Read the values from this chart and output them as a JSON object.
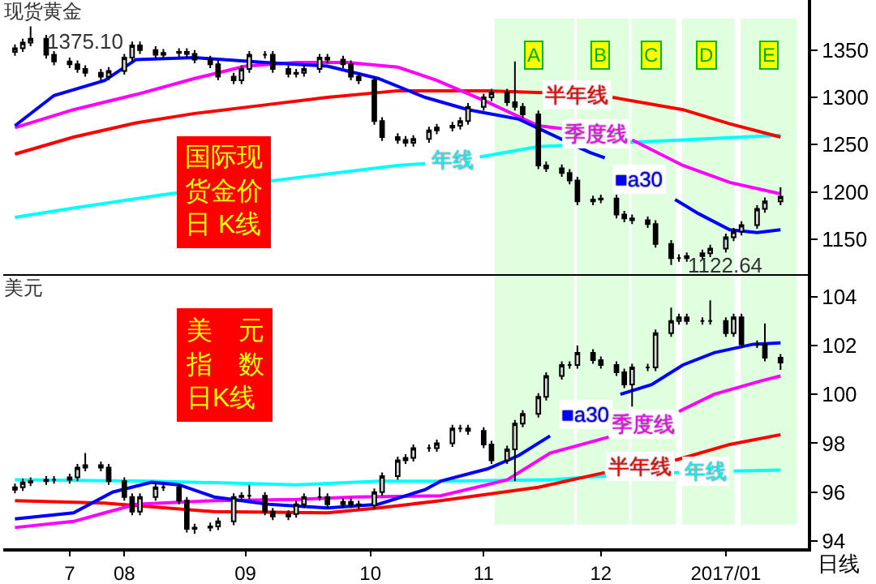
{
  "chart_data": [
    {
      "type": "candlestick",
      "title": "现货黄金",
      "tick_labels": "y",
      "legend": false,
      "xlim": [
        "2016-07-01",
        "2017-01-23"
      ],
      "ylim": [
        1113,
        1403
      ],
      "yticks": [
        1150,
        1200,
        1250,
        1300,
        1350
      ],
      "x": [
        "2016-07-04",
        "2016-07-06",
        "2016-07-08",
        "2016-07-12",
        "2016-07-14",
        "2016-07-18",
        "2016-07-20",
        "2016-07-22",
        "2016-07-26",
        "2016-07-28",
        "2016-08-01",
        "2016-08-03",
        "2016-08-05",
        "2016-08-09",
        "2016-08-11",
        "2016-08-15",
        "2016-08-17",
        "2016-08-19",
        "2016-08-23",
        "2016-08-25",
        "2016-08-29",
        "2016-08-31",
        "2016-09-02",
        "2016-09-06",
        "2016-09-08",
        "2016-09-12",
        "2016-09-14",
        "2016-09-16",
        "2016-09-20",
        "2016-09-22",
        "2016-09-26",
        "2016-09-28",
        "2016-09-30",
        "2016-10-04",
        "2016-10-06",
        "2016-10-10",
        "2016-10-12",
        "2016-10-14",
        "2016-10-18",
        "2016-10-20",
        "2016-10-24",
        "2016-10-26",
        "2016-10-28",
        "2016-11-01",
        "2016-11-03",
        "2016-11-07",
        "2016-11-09",
        "2016-11-11",
        "2016-11-15",
        "2016-11-17",
        "2016-11-21",
        "2016-11-23",
        "2016-11-25",
        "2016-11-29",
        "2016-12-01",
        "2016-12-05",
        "2016-12-07",
        "2016-12-09",
        "2016-12-13",
        "2016-12-15",
        "2016-12-19",
        "2016-12-21",
        "2016-12-23",
        "2016-12-27",
        "2016-12-29",
        "2017-01-02",
        "2017-01-04",
        "2017-01-06",
        "2017-01-10",
        "2017-01-12",
        "2017-01-16"
      ],
      "ohlc": [
        [
          1348,
          1356,
          1344,
          1352
        ],
        [
          1352,
          1362,
          1348,
          1358
        ],
        [
          1358,
          1375.1,
          1354,
          1362
        ],
        [
          1362,
          1366,
          1341,
          1345
        ],
        [
          1345,
          1349,
          1334,
          1338
        ],
        [
          1338,
          1342,
          1331,
          1335
        ],
        [
          1335,
          1339,
          1326,
          1330
        ],
        [
          1330,
          1334,
          1322,
          1326
        ],
        [
          1326,
          1330,
          1318,
          1322
        ],
        [
          1322,
          1332,
          1318,
          1328
        ],
        [
          1328,
          1346,
          1324,
          1342
        ],
        [
          1342,
          1359,
          1338,
          1355
        ],
        [
          1355,
          1359,
          1346,
          1350
        ],
        [
          1350,
          1354,
          1341,
          1345
        ],
        [
          1345,
          1351,
          1341,
          1347
        ],
        [
          1347,
          1352,
          1343,
          1348
        ],
        [
          1348,
          1352,
          1342,
          1346
        ],
        [
          1346,
          1350,
          1336,
          1340
        ],
        [
          1340,
          1344,
          1331,
          1335
        ],
        [
          1335,
          1339,
          1318,
          1322
        ],
        [
          1322,
          1326,
          1314,
          1318
        ],
        [
          1318,
          1334,
          1314,
          1330
        ],
        [
          1330,
          1349,
          1326,
          1345
        ],
        [
          1345,
          1349,
          1341,
          1345
        ],
        [
          1345,
          1349,
          1326,
          1330
        ],
        [
          1330,
          1334,
          1321,
          1325
        ],
        [
          1325,
          1330,
          1321,
          1326
        ],
        [
          1326,
          1334,
          1322,
          1330
        ],
        [
          1330,
          1346,
          1326,
          1342
        ],
        [
          1342,
          1346,
          1336,
          1340
        ],
        [
          1340,
          1344,
          1331,
          1335
        ],
        [
          1335,
          1339,
          1318,
          1322
        ],
        [
          1322,
          1326,
          1314,
          1318
        ],
        [
          1318,
          1322,
          1271,
          1275
        ],
        [
          1275,
          1279,
          1254,
          1258
        ],
        [
          1258,
          1262,
          1251,
          1255
        ],
        [
          1255,
          1259,
          1248,
          1252
        ],
        [
          1252,
          1260,
          1248,
          1256
        ],
        [
          1256,
          1269,
          1252,
          1265
        ],
        [
          1265,
          1272,
          1261,
          1268
        ],
        [
          1268,
          1274,
          1264,
          1270
        ],
        [
          1270,
          1279,
          1266,
          1275
        ],
        [
          1275,
          1294,
          1271,
          1290
        ],
        [
          1290,
          1304,
          1286,
          1300
        ],
        [
          1300,
          1309,
          1296,
          1305
        ],
        [
          1305,
          1309,
          1291,
          1295
        ],
        [
          1295,
          1338,
          1286,
          1290
        ],
        [
          1290,
          1294,
          1278,
          1282
        ],
        [
          1282,
          1286,
          1224,
          1228
        ],
        [
          1228,
          1232,
          1221,
          1225
        ],
        [
          1225,
          1229,
          1216,
          1220
        ],
        [
          1220,
          1224,
          1208,
          1212
        ],
        [
          1212,
          1216,
          1186,
          1190
        ],
        [
          1190,
          1196,
          1186,
          1192
        ],
        [
          1192,
          1197,
          1188,
          1193
        ],
        [
          1193,
          1197,
          1172,
          1176
        ],
        [
          1176,
          1180,
          1168,
          1172
        ],
        [
          1172,
          1176,
          1166,
          1170
        ],
        [
          1170,
          1174,
          1162,
          1166
        ],
        [
          1166,
          1170,
          1141,
          1145
        ],
        [
          1145,
          1149,
          1122.64,
          1130
        ],
        [
          1130,
          1134,
          1126,
          1130
        ],
        [
          1130,
          1136,
          1126,
          1132
        ],
        [
          1132,
          1139,
          1128,
          1135
        ],
        [
          1135,
          1144,
          1131,
          1140
        ],
        [
          1140,
          1156,
          1136,
          1152
        ],
        [
          1152,
          1162,
          1148,
          1158
        ],
        [
          1158,
          1169,
          1154,
          1165
        ],
        [
          1165,
          1186,
          1161,
          1182
        ],
        [
          1182,
          1194,
          1178,
          1190
        ],
        [
          1190,
          1205,
          1186,
          1195
        ]
      ],
      "series": [
        {
          "type": "line",
          "name": "年线",
          "color": "#00ffff",
          "x": [
            "2016-07-04",
            "2016-07-19",
            "2016-08-11",
            "2016-09-14",
            "2016-10-10",
            "2016-10-17",
            "2016-10-24",
            "2016-10-31",
            "2016-11-15",
            "2016-12-12",
            "2016-12-22",
            "2017-01-16"
          ],
          "values": [
            1173,
            1183,
            1197,
            1215,
            1228,
            1230,
            null,
            1237,
            1248,
            1253,
            1255,
            1260
          ]
        },
        {
          "type": "line",
          "name": "半年线",
          "color": "#ff0000",
          "x": [
            "2016-07-04",
            "2016-07-19",
            "2016-08-04",
            "2016-08-19",
            "2016-09-06",
            "2016-09-22",
            "2016-10-10",
            "2016-11-02",
            "2016-11-16",
            "2016-11-25",
            "2016-12-04",
            "2016-12-22",
            "2017-01-03",
            "2017-01-16"
          ],
          "values": [
            1240,
            1258,
            1273,
            1283,
            1292,
            1300,
            1307,
            1307,
            1305,
            null,
            1300,
            1287,
            1272,
            1258
          ]
        },
        {
          "type": "line",
          "name": "季度线",
          "color": "#ff00ff",
          "x": [
            "2016-07-04",
            "2016-07-19",
            "2016-08-04",
            "2016-08-19",
            "2016-09-01",
            "2016-09-14",
            "2016-09-27",
            "2016-10-10",
            "2016-10-20",
            "2016-11-02",
            "2016-11-15",
            "2016-11-21",
            "2016-11-30",
            "2016-12-09",
            "2016-12-22",
            "2017-01-03",
            "2017-01-16"
          ],
          "values": [
            1268,
            1287,
            1303,
            1320,
            1333,
            1337,
            1337,
            1332,
            1318,
            1295,
            1270,
            1267,
            null,
            1255,
            1228,
            1210,
            1198
          ]
        },
        {
          "type": "line",
          "name": "■a30",
          "color": "#0000ff",
          "x": [
            "2016-07-04",
            "2016-07-14",
            "2016-07-27",
            "2016-08-04",
            "2016-08-19",
            "2016-09-06",
            "2016-09-22",
            "2016-10-05",
            "2016-10-17",
            "2016-10-28",
            "2016-11-10",
            "2016-11-28",
            "2016-12-02",
            "2016-12-11",
            "2016-12-20",
            "2016-12-26",
            "2017-01-03",
            "2017-01-10",
            "2017-01-16"
          ],
          "values": [
            1270,
            1302,
            1318,
            1340,
            1342,
            1337,
            1333,
            1320,
            1300,
            1287,
            1277,
            1242,
            1236,
            null,
            1192,
            1177,
            1160,
            1157,
            1160
          ]
        }
      ],
      "bands": [
        {
          "axis": "x",
          "from": "2016-11-04",
          "to": "2016-11-24",
          "label": "A",
          "color": "#00ff00"
        },
        {
          "axis": "x",
          "from": "2016-11-25",
          "to": "2016-12-08",
          "label": "B",
          "color": "#00ff00"
        },
        {
          "axis": "x",
          "from": "2016-12-09",
          "to": "2016-12-20",
          "label": "C",
          "color": "#00ff00"
        },
        {
          "axis": "x",
          "from": "2016-12-22",
          "to": "2017-01-04",
          "label": "D",
          "color": "#00ff00"
        },
        {
          "axis": "x",
          "from": "2017-01-06",
          "to": "2017-01-20",
          "label": "E",
          "color": "#00ff00"
        }
      ],
      "annotations": [
        "国际现货金价日 K线",
        {
          "text": "1375.10",
          "x": "2016-07-08",
          "y": 1375.1
        },
        {
          "text": "1122.64",
          "x": "2016-12-19",
          "y": 1122.64
        }
      ]
    },
    {
      "type": "candlestick",
      "title": "美元",
      "xlabel": "日线",
      "legend": false,
      "xlim": [
        "2016-07-01",
        "2017-01-23"
      ],
      "xticks": [
        {
          "value": "2016-07-18",
          "label": "7"
        },
        {
          "value": "2016-08-01",
          "label": "08"
        },
        {
          "value": "2016-09-01",
          "label": "09"
        },
        {
          "value": "2016-10-03",
          "label": "10"
        },
        {
          "value": "2016-11-01",
          "label": "11"
        },
        {
          "value": "2016-12-01",
          "label": "12"
        },
        {
          "value": "2017-01-02",
          "label": "2017/01"
        }
      ],
      "ylim": [
        93.7,
        104.85
      ],
      "yticks": [
        94,
        96,
        98,
        100,
        102,
        104
      ],
      "x": [
        "2016-07-04",
        "2016-07-06",
        "2016-07-08",
        "2016-07-12",
        "2016-07-14",
        "2016-07-18",
        "2016-07-20",
        "2016-07-22",
        "2016-07-26",
        "2016-07-28",
        "2016-08-01",
        "2016-08-03",
        "2016-08-05",
        "2016-08-09",
        "2016-08-11",
        "2016-08-15",
        "2016-08-17",
        "2016-08-19",
        "2016-08-23",
        "2016-08-25",
        "2016-08-29",
        "2016-08-31",
        "2016-09-02",
        "2016-09-06",
        "2016-09-08",
        "2016-09-12",
        "2016-09-14",
        "2016-09-16",
        "2016-09-20",
        "2016-09-22",
        "2016-09-26",
        "2016-09-28",
        "2016-09-30",
        "2016-10-04",
        "2016-10-06",
        "2016-10-10",
        "2016-10-12",
        "2016-10-14",
        "2016-10-18",
        "2016-10-20",
        "2016-10-24",
        "2016-10-26",
        "2016-10-28",
        "2016-11-01",
        "2016-11-03",
        "2016-11-07",
        "2016-11-09",
        "2016-11-11",
        "2016-11-15",
        "2016-11-17",
        "2016-11-21",
        "2016-11-23",
        "2016-11-25",
        "2016-11-29",
        "2016-12-01",
        "2016-12-05",
        "2016-12-07",
        "2016-12-09",
        "2016-12-13",
        "2016-12-15",
        "2016-12-19",
        "2016-12-21",
        "2016-12-23",
        "2016-12-27",
        "2016-12-29",
        "2017-01-02",
        "2017-01-04",
        "2017-01-06",
        "2017-01-10",
        "2017-01-12",
        "2017-01-16"
      ],
      "ohlc": [
        [
          96.1,
          96.35,
          95.95,
          96.2
        ],
        [
          96.2,
          96.55,
          96.05,
          96.4
        ],
        [
          96.4,
          96.6,
          96.25,
          96.45
        ],
        [
          96.45,
          96.65,
          96.3,
          96.5
        ],
        [
          96.5,
          96.65,
          96.35,
          96.5
        ],
        [
          96.5,
          96.75,
          96.35,
          96.6
        ],
        [
          96.6,
          97.15,
          96.45,
          97.0
        ],
        [
          97.0,
          97.6,
          96.85,
          97.1
        ],
        [
          97.1,
          97.25,
          96.85,
          97.0
        ],
        [
          97.0,
          97.15,
          96.3,
          96.45
        ],
        [
          96.45,
          96.6,
          95.65,
          95.8
        ],
        [
          95.8,
          95.95,
          95.05,
          95.2
        ],
        [
          95.2,
          95.95,
          95.05,
          95.8
        ],
        [
          95.8,
          96.35,
          95.65,
          96.2
        ],
        [
          96.2,
          96.35,
          96.05,
          96.2
        ],
        [
          96.2,
          96.35,
          95.5,
          95.65
        ],
        [
          95.65,
          95.8,
          94.35,
          94.5
        ],
        [
          94.5,
          94.7,
          94.3,
          94.55
        ],
        [
          94.55,
          94.75,
          94.4,
          94.6
        ],
        [
          94.6,
          94.95,
          94.45,
          94.8
        ],
        [
          94.8,
          95.95,
          94.65,
          95.8
        ],
        [
          95.8,
          96.0,
          95.65,
          95.85
        ],
        [
          95.85,
          96.3,
          95.7,
          95.85
        ],
        [
          95.85,
          96.0,
          95.05,
          95.2
        ],
        [
          95.2,
          95.35,
          94.85,
          95.0
        ],
        [
          95.0,
          95.25,
          94.85,
          95.1
        ],
        [
          95.1,
          95.65,
          94.95,
          95.5
        ],
        [
          95.5,
          95.95,
          95.35,
          95.8
        ],
        [
          95.8,
          96.2,
          95.65,
          95.8
        ],
        [
          95.8,
          95.95,
          95.35,
          95.5
        ],
        [
          95.5,
          95.75,
          95.35,
          95.6
        ],
        [
          95.6,
          95.75,
          95.35,
          95.5
        ],
        [
          95.5,
          95.65,
          95.3,
          95.45
        ],
        [
          95.45,
          96.15,
          95.3,
          96.0
        ],
        [
          96.0,
          96.8,
          95.85,
          96.65
        ],
        [
          96.65,
          97.45,
          96.5,
          97.3
        ],
        [
          97.3,
          97.55,
          97.15,
          97.4
        ],
        [
          97.4,
          97.95,
          97.25,
          97.8
        ],
        [
          97.8,
          97.95,
          97.65,
          97.8
        ],
        [
          97.8,
          98.15,
          97.65,
          98.0
        ],
        [
          98.0,
          98.75,
          97.85,
          98.6
        ],
        [
          98.6,
          98.75,
          98.45,
          98.6
        ],
        [
          98.6,
          98.75,
          98.35,
          98.5
        ],
        [
          98.5,
          98.65,
          97.8,
          97.95
        ],
        [
          97.95,
          98.1,
          97.15,
          97.3
        ],
        [
          97.3,
          97.9,
          97.15,
          97.75
        ],
        [
          97.75,
          98.95,
          96.45,
          98.8
        ],
        [
          98.8,
          99.35,
          98.65,
          99.2
        ],
        [
          99.2,
          100.05,
          99.05,
          99.9
        ],
        [
          99.9,
          100.9,
          99.75,
          100.75
        ],
        [
          100.75,
          101.35,
          100.6,
          101.2
        ],
        [
          101.2,
          101.35,
          101.05,
          101.2
        ],
        [
          101.2,
          102.0,
          101.05,
          101.7
        ],
        [
          101.7,
          101.85,
          101.25,
          101.4
        ],
        [
          101.4,
          101.55,
          101.05,
          101.2
        ],
        [
          101.2,
          101.35,
          100.75,
          100.9
        ],
        [
          100.9,
          101.05,
          100.25,
          100.4
        ],
        [
          100.4,
          101.25,
          99.5,
          101.1
        ],
        [
          101.1,
          101.25,
          100.95,
          101.1
        ],
        [
          101.1,
          102.65,
          100.95,
          102.5
        ],
        [
          102.5,
          103.55,
          102.35,
          103.0
        ],
        [
          103.0,
          103.3,
          102.85,
          103.15
        ],
        [
          103.15,
          103.3,
          102.85,
          103.0
        ],
        [
          103.0,
          103.15,
          102.85,
          103.0
        ],
        [
          103.0,
          103.85,
          102.85,
          103.0
        ],
        [
          103.0,
          103.15,
          102.35,
          102.5
        ],
        [
          102.5,
          103.3,
          102.35,
          103.15
        ],
        [
          103.15,
          103.3,
          101.9,
          102.05
        ],
        [
          102.05,
          102.2,
          101.9,
          102.05
        ],
        [
          102.05,
          102.9,
          101.35,
          101.5
        ],
        [
          101.5,
          101.65,
          101.0,
          101.3
        ]
      ],
      "series": [
        {
          "type": "line",
          "name": "年线",
          "color": "#00ffff",
          "x": [
            "2016-07-04",
            "2016-08-08",
            "2016-09-14",
            "2016-10-05",
            "2016-10-21",
            "2016-11-18",
            "2016-11-28",
            "2016-12-21",
            "2016-12-28",
            "2017-01-04",
            "2017-01-16"
          ],
          "values": [
            96.5,
            96.45,
            96.3,
            96.45,
            96.45,
            96.5,
            96.62,
            96.8,
            null,
            96.86,
            96.9
          ]
        },
        {
          "type": "line",
          "name": "半年线",
          "color": "#ff0000",
          "x": [
            "2016-07-04",
            "2016-07-27",
            "2016-08-24",
            "2016-09-22",
            "2016-10-05",
            "2016-10-21",
            "2016-11-15",
            "2016-12-02",
            "2016-12-11",
            "2016-12-20",
            "2017-01-03",
            "2017-01-16"
          ],
          "values": [
            95.65,
            95.55,
            95.2,
            95.15,
            95.35,
            95.65,
            96.2,
            96.8,
            null,
            97.3,
            97.95,
            98.35
          ]
        },
        {
          "type": "line",
          "name": "季度线",
          "color": "#ff00ff",
          "x": [
            "2016-07-04",
            "2016-07-19",
            "2016-07-27",
            "2016-08-04",
            "2016-08-24",
            "2016-09-14",
            "2016-09-29",
            "2016-10-21",
            "2016-11-07",
            "2016-11-18",
            "2016-12-03",
            "2016-12-12",
            "2016-12-21",
            "2016-12-30",
            "2017-01-11",
            "2017-01-16"
          ],
          "values": [
            94.55,
            94.8,
            95.15,
            95.5,
            95.65,
            95.7,
            95.8,
            95.85,
            96.5,
            97.6,
            98.25,
            null,
            99.3,
            100.0,
            100.55,
            100.75
          ]
        },
        {
          "type": "line",
          "name": "■a30",
          "color": "#0000ff",
          "x": [
            "2016-07-04",
            "2016-07-19",
            "2016-07-29",
            "2016-08-08",
            "2016-08-15",
            "2016-08-24",
            "2016-09-07",
            "2016-09-22",
            "2016-10-05",
            "2016-10-17",
            "2016-10-21",
            "2016-11-02",
            "2016-11-10",
            "2016-11-18",
            "2016-11-27",
            "2016-12-06",
            "2016-12-14",
            "2016-12-22",
            "2016-12-30",
            "2017-01-09",
            "2017-01-16"
          ],
          "values": [
            94.9,
            95.15,
            96.0,
            96.4,
            96.3,
            95.8,
            95.5,
            95.35,
            95.5,
            96.1,
            96.45,
            96.95,
            97.5,
            98.3,
            null,
            100.0,
            100.4,
            101.2,
            101.7,
            102.05,
            102.1
          ]
        }
      ],
      "bands": [
        {
          "axis": "x",
          "from": "2016-11-04",
          "to": "2016-11-24",
          "color": "#00ff00"
        },
        {
          "axis": "x",
          "from": "2016-11-25",
          "to": "2016-12-08",
          "color": "#00ff00"
        },
        {
          "axis": "x",
          "from": "2016-12-09",
          "to": "2016-12-20",
          "color": "#00ff00"
        },
        {
          "axis": "x",
          "from": "2016-12-22",
          "to": "2017-01-04",
          "color": "#00ff00"
        },
        {
          "axis": "x",
          "from": "2017-01-06",
          "to": "2017-01-20",
          "color": "#00ff00"
        }
      ],
      "annotations": [
        "美　元指　数日K线"
      ]
    }
  ]
}
